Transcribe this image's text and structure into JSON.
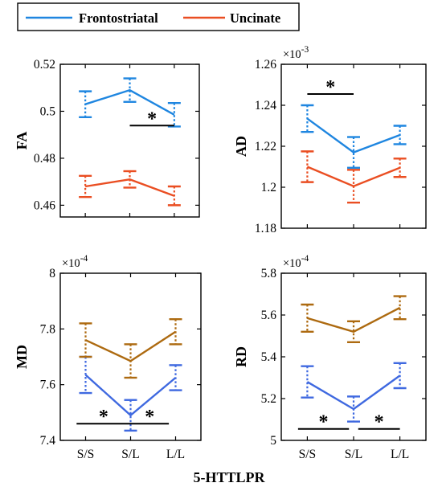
{
  "figure": {
    "xlabel": "5-HTTLPR",
    "legend": [
      {
        "name": "Frontostriatal",
        "color": "#1f86e0"
      },
      {
        "name": "Uncinate",
        "color": "#ea4e22"
      }
    ]
  },
  "chart_data": [
    {
      "type": "line",
      "ylabel": "FA",
      "exponent": "",
      "categories": [
        "S/S",
        "S/L",
        "L/L"
      ],
      "show_xticklabels": false,
      "ylim": [
        0.455,
        0.52
      ],
      "yticks": [
        0.46,
        0.48,
        0.5,
        0.52
      ],
      "ytick_labels": [
        "0.46",
        "0.48",
        "0.5",
        "0.52"
      ],
      "series": [
        {
          "name": "Frontostriatal",
          "color": "#1f86e0",
          "values": [
            0.503,
            0.509,
            0.4985
          ],
          "err": [
            0.0055,
            0.005,
            0.005
          ]
        },
        {
          "name": "Uncinate",
          "color": "#ea4e22",
          "values": [
            0.468,
            0.471,
            0.464
          ],
          "err": [
            0.0045,
            0.0035,
            0.004
          ]
        }
      ],
      "significance": [
        {
          "from": 1.0,
          "to": 2.0,
          "y": 0.4939,
          "label": "*"
        }
      ]
    },
    {
      "type": "line",
      "ylabel": "AD",
      "exponent": "-3",
      "categories": [
        "S/S",
        "S/L",
        "L/L"
      ],
      "show_xticklabels": false,
      "ylim": [
        1.18,
        1.26
      ],
      "yticks": [
        1.18,
        1.2,
        1.22,
        1.24,
        1.26
      ],
      "ytick_labels": [
        "1.18",
        "1.2",
        "1.22",
        "1.24",
        "1.26"
      ],
      "series": [
        {
          "name": "Frontostriatal",
          "color": "#1f86e0",
          "values": [
            1.2335,
            1.217,
            1.2255
          ],
          "err": [
            0.0065,
            0.0075,
            0.0045
          ]
        },
        {
          "name": "Uncinate",
          "color": "#ea4e22",
          "values": [
            1.21,
            1.2005,
            1.2095
          ],
          "err": [
            0.0075,
            0.008,
            0.0045
          ]
        }
      ],
      "significance": [
        {
          "from": 0.0,
          "to": 1.0,
          "y": 1.2455,
          "label": "*"
        }
      ]
    },
    {
      "type": "line",
      "ylabel": "MD",
      "exponent": "-4",
      "categories": [
        "S/S",
        "S/L",
        "L/L"
      ],
      "show_xticklabels": true,
      "ylim": [
        7.4,
        8.0
      ],
      "yticks": [
        7.4,
        7.6,
        7.8,
        8.0
      ],
      "ytick_labels": [
        "7.4",
        "7.6",
        "7.8",
        "8"
      ],
      "series": [
        {
          "name": "",
          "color": "#3f69e0",
          "values": [
            7.635,
            7.49,
            7.625
          ],
          "err": [
            0.065,
            0.055,
            0.045
          ]
        },
        {
          "name": "",
          "color": "#ad6a10",
          "values": [
            7.76,
            7.685,
            7.79
          ],
          "err": [
            0.06,
            0.06,
            0.045
          ]
        }
      ],
      "significance": [
        {
          "from": -0.2,
          "to": 1.0,
          "y": 7.46,
          "label": "*"
        },
        {
          "from": 1.0,
          "to": 1.85,
          "y": 7.46,
          "label": "*"
        }
      ]
    },
    {
      "type": "line",
      "ylabel": "RD",
      "exponent": "-4",
      "categories": [
        "S/S",
        "S/L",
        "L/L"
      ],
      "show_xticklabels": true,
      "ylim": [
        5.0,
        5.8
      ],
      "yticks": [
        5.0,
        5.2,
        5.4,
        5.6,
        5.8
      ],
      "ytick_labels": [
        "5",
        "5.2",
        "5.4",
        "5.6",
        "5.8"
      ],
      "series": [
        {
          "name": "",
          "color": "#3f69e0",
          "values": [
            5.28,
            5.15,
            5.31
          ],
          "err": [
            0.075,
            0.06,
            0.06
          ]
        },
        {
          "name": "",
          "color": "#ad6a10",
          "values": [
            5.585,
            5.52,
            5.635
          ],
          "err": [
            0.065,
            0.05,
            0.055
          ]
        }
      ],
      "significance": [
        {
          "from": -0.2,
          "to": 0.9,
          "y": 5.055,
          "label": "*"
        },
        {
          "from": 1.1,
          "to": 2.0,
          "y": 5.055,
          "label": "*"
        }
      ]
    }
  ]
}
